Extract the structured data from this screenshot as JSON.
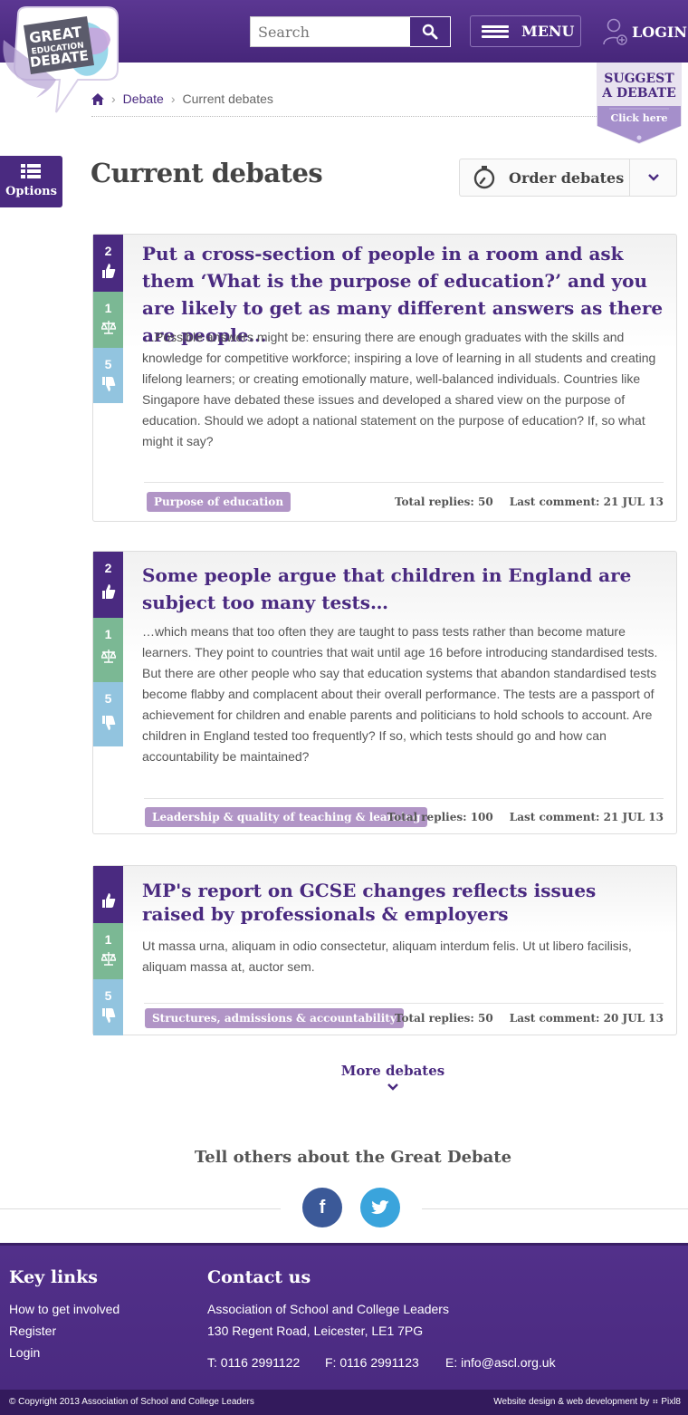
{
  "brand": {
    "logo_lines": [
      "GREAT",
      "EDUCATION",
      "DEBATE"
    ],
    "accent": "#4a2a80",
    "vote_colors": {
      "up": "#4a2a80",
      "mid": "#7bb894",
      "down": "#92c4df"
    }
  },
  "header": {
    "search_placeholder": "Search",
    "menu_label": "MENU",
    "login_label": "LOGIN"
  },
  "suggest": {
    "title_line1": "SUGGEST",
    "title_line2": "A DEBATE",
    "cta": "Click here"
  },
  "breadcrumb": {
    "home_icon": "home-icon",
    "items": [
      "Debate",
      "Current debates"
    ]
  },
  "options_label": "Options",
  "page_title": "Current debates",
  "order_label": "Order debates",
  "debates": [
    {
      "votes_up": "2",
      "votes_mid": "1",
      "votes_down": "5",
      "title": "Put a cross-section of people in a room and ask them ‘What is the purpose of education?’ and you are likely to get as many different answers as there are people…",
      "body": "…Possible answers might be: ensuring there are enough graduates with the skills and knowledge for competitive workforce; inspiring a love of learning in all students and creating lifelong learners; or creating emotionally mature, well-balanced individuals. Countries like Singapore have debated these issues and developed a shared view on the purpose of education. Should we adopt a national statement on the purpose of education? If, so what might it say?",
      "tag": "Purpose of education",
      "replies": "Total replies: 50",
      "last_comment": "Last comment: 21 JUL 13"
    },
    {
      "votes_up": "2",
      "votes_mid": "1",
      "votes_down": "5",
      "title": "Some people argue that children in England are subject too many tests…",
      "body": "…which means that too often they are taught to pass tests rather than become mature learners. They point to countries that wait until age 16 before introducing standardised tests. But there are other people who say that education systems that abandon standardised tests become flabby and complacent about their overall performance. The tests are a passport of achievement for children and enable parents and politicians to hold schools to account. Are children in England tested too frequently? If so, which tests should go and how can accountability be maintained?",
      "tag": "Leadership & quality of teaching & learning",
      "replies": "Total replies: 100",
      "last_comment": "Last comment: 21 JUL 13"
    },
    {
      "votes_up": "",
      "votes_mid": "1",
      "votes_down": "5",
      "title": "MP's report on GCSE changes reflects issues raised by professionals & employers",
      "body": "Ut massa urna, aliquam in odio consectetur, aliquam interdum felis. Ut ut libero facilisis, aliquam massa at, auctor sem.",
      "tag": "Structures, admissions & accountability",
      "replies": "Total replies: 50",
      "last_comment": "Last comment: 20 JUL 13"
    }
  ],
  "more_label": "More debates",
  "share": {
    "title": "Tell others about the Great Debate",
    "facebook_glyph": "f",
    "facebook_icon": "facebook-icon",
    "twitter_icon": "twitter-icon"
  },
  "footer": {
    "key_links_title": "Key links",
    "key_links": [
      "How to get involved",
      "Register",
      "Login"
    ],
    "contact_title": "Contact us",
    "org": "Association of School and College Leaders",
    "address": "130 Regent Road, Leicester, LE1 7PG",
    "phone": "T: 0116 2991122",
    "fax": "F: 0116 2991123",
    "email": "E: info@ascl.org.uk",
    "copyright": "© Copyright 2013 Association of School and College Leaders",
    "credit": "Website design & web development by ⠶ Pixl8"
  }
}
